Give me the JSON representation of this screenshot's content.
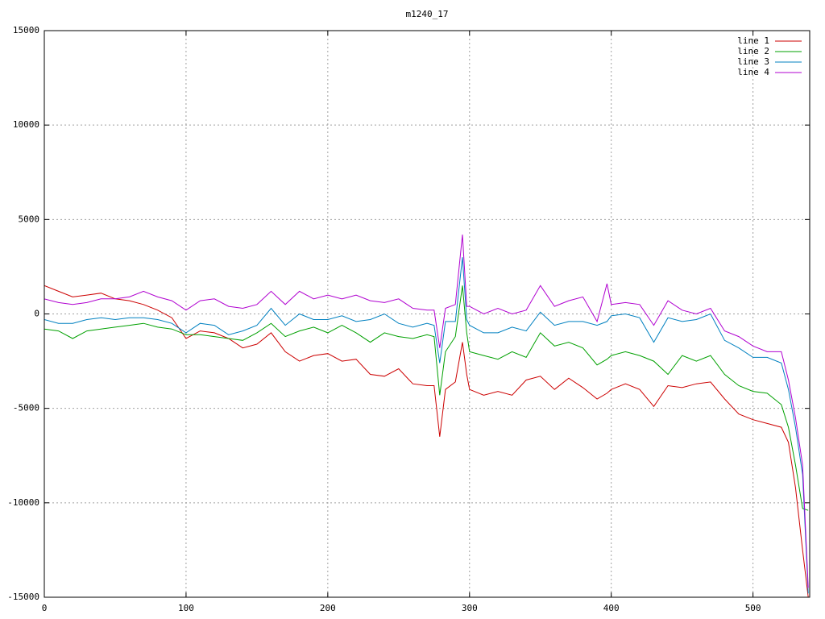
{
  "chart_data": {
    "type": "line",
    "title": "m1240_17",
    "x": [
      0,
      10,
      20,
      30,
      40,
      50,
      60,
      70,
      80,
      90,
      100,
      110,
      120,
      130,
      140,
      150,
      160,
      170,
      180,
      190,
      200,
      210,
      220,
      230,
      240,
      250,
      260,
      270,
      275,
      279,
      283,
      290,
      295,
      298,
      300,
      310,
      320,
      330,
      340,
      350,
      360,
      370,
      380,
      390,
      397,
      400,
      410,
      420,
      430,
      440,
      450,
      460,
      470,
      480,
      490,
      500,
      510,
      520,
      525,
      530,
      535,
      539
    ],
    "series": [
      {
        "name": "line 1",
        "color": "#cc0000",
        "values": [
          1500,
          1200,
          900,
          1000,
          1100,
          800,
          700,
          500,
          200,
          -200,
          -1300,
          -900,
          -1000,
          -1300,
          -1800,
          -1600,
          -1000,
          -2000,
          -2500,
          -2200,
          -2100,
          -2500,
          -2400,
          -3200,
          -3300,
          -2900,
          -3700,
          -3800,
          -3800,
          -6500,
          -4000,
          -3600,
          -1500,
          -3200,
          -4000,
          -4300,
          -4100,
          -4300,
          -3500,
          -3300,
          -4000,
          -3400,
          -3900,
          -4500,
          -4200,
          -4000,
          -3700,
          -4000,
          -4900,
          -3800,
          -3900,
          -3700,
          -3600,
          -4500,
          -5300,
          -5600,
          -5800,
          -6000,
          -6800,
          -9200,
          -12500,
          -15000
        ]
      },
      {
        "name": "line 2",
        "color": "#00a000",
        "values": [
          -800,
          -900,
          -1300,
          -900,
          -800,
          -700,
          -600,
          -500,
          -700,
          -800,
          -1100,
          -1100,
          -1200,
          -1300,
          -1400,
          -1000,
          -500,
          -1200,
          -900,
          -700,
          -1000,
          -600,
          -1000,
          -1500,
          -1000,
          -1200,
          -1300,
          -1100,
          -1200,
          -4300,
          -2000,
          -1200,
          1500,
          -1000,
          -2000,
          -2200,
          -2400,
          -2000,
          -2300,
          -1000,
          -1700,
          -1500,
          -1800,
          -2700,
          -2400,
          -2200,
          -2000,
          -2200,
          -2500,
          -3200,
          -2200,
          -2500,
          -2200,
          -3200,
          -3800,
          -4100,
          -4200,
          -4800,
          -6000,
          -8000,
          -10300,
          -10400
        ]
      },
      {
        "name": "line 3",
        "color": "#0080c0",
        "values": [
          -300,
          -500,
          -500,
          -300,
          -200,
          -300,
          -200,
          -200,
          -300,
          -500,
          -1000,
          -500,
          -600,
          -1100,
          -900,
          -600,
          300,
          -600,
          0,
          -300,
          -300,
          -100,
          -400,
          -300,
          0,
          -500,
          -700,
          -500,
          -600,
          -2600,
          -400,
          -400,
          3000,
          -300,
          -600,
          -1000,
          -1000,
          -700,
          -900,
          100,
          -600,
          -400,
          -400,
          -600,
          -400,
          -100,
          0,
          -200,
          -1500,
          -200,
          -400,
          -300,
          0,
          -1400,
          -1800,
          -2300,
          -2300,
          -2600,
          -4000,
          -6000,
          -8500,
          -14800
        ]
      },
      {
        "name": "line 4",
        "color": "#b000d0",
        "values": [
          800,
          600,
          500,
          600,
          800,
          800,
          900,
          1200,
          900,
          700,
          200,
          700,
          800,
          400,
          300,
          500,
          1200,
          500,
          1200,
          800,
          1000,
          800,
          1000,
          700,
          600,
          800,
          300,
          200,
          200,
          -1800,
          300,
          500,
          4200,
          400,
          400,
          0,
          300,
          0,
          200,
          1500,
          400,
          700,
          900,
          -400,
          1600,
          500,
          600,
          500,
          -600,
          700,
          200,
          0,
          300,
          -900,
          -1200,
          -1700,
          -2000,
          -2000,
          -3500,
          -5500,
          -8000,
          -14500
        ]
      }
    ],
    "xlim": [
      0,
      540
    ],
    "xticks": [
      0,
      100,
      200,
      300,
      400,
      500
    ],
    "ylim": [
      -15000,
      15000
    ],
    "yticks": [
      -15000,
      -10000,
      -5000,
      0,
      5000,
      10000,
      15000
    ],
    "grid": true,
    "legend": "upper right"
  }
}
